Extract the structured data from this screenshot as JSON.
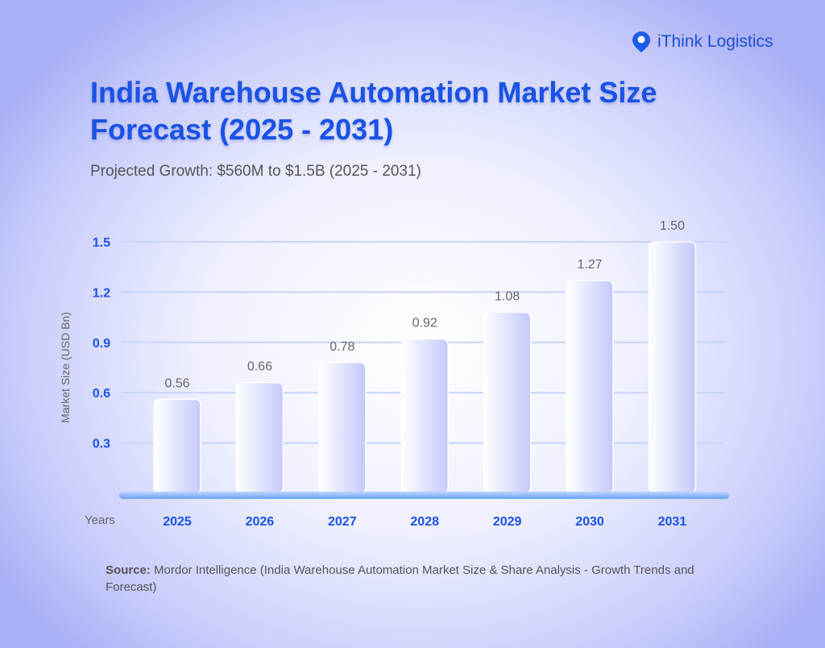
{
  "brand": {
    "name": "iThink Logistics",
    "color": "#1d4fd8"
  },
  "header": {
    "title": "India Warehouse Automation Market Size Forecast (2025 - 2031)",
    "subtitle": "Projected Growth: $560M to $1.5B (2025 - 2031)"
  },
  "source": {
    "label": "Source:",
    "text": " Mordor Intelligence (India Warehouse Automation Market Size & Share Analysis - Growth Trends and Forecast)"
  },
  "chart_data": {
    "type": "bar",
    "title": "India Warehouse Automation Market Size Forecast (2025 - 2031)",
    "xlabel": "Years",
    "ylabel": "Market Size (USD Bn)",
    "categories": [
      "2025",
      "2026",
      "2027",
      "2028",
      "2029",
      "2030",
      "2031"
    ],
    "values": [
      0.56,
      0.66,
      0.78,
      0.92,
      1.08,
      1.27,
      1.5
    ],
    "data_labels": [
      "0.56",
      "0.66",
      "0.78",
      "0.92",
      "1.08",
      "1.27",
      "1.50"
    ],
    "yticks": [
      "0.3",
      "0.6",
      "0.9",
      "1.2",
      "1.5"
    ],
    "ylim": [
      0,
      1.5
    ],
    "grid": true,
    "accent": "#1a52e6"
  }
}
